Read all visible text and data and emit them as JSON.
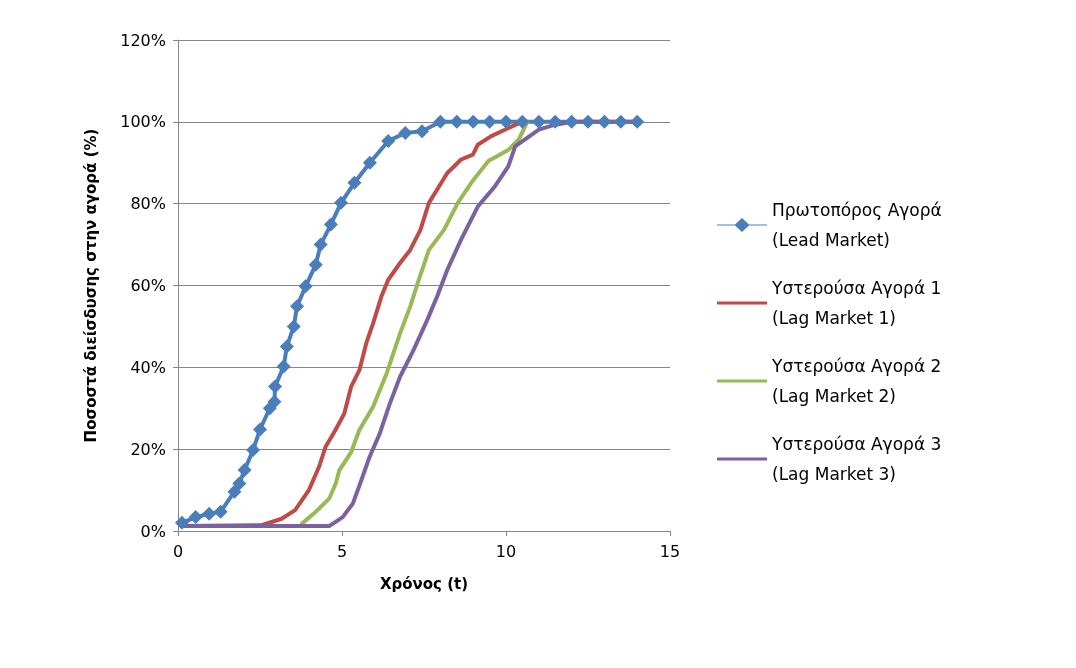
{
  "chart_data": {
    "type": "line",
    "xlabel": "Χρόνος (t)",
    "ylabel": "Ποσοστά διείσδυσης στην αγορά (%)",
    "xlim": [
      0,
      15
    ],
    "xticks": [
      0,
      5,
      10,
      15
    ],
    "ylim": [
      0,
      120
    ],
    "yticks": [
      {
        "value": 0,
        "label": "0%"
      },
      {
        "value": 20,
        "label": "20%"
      },
      {
        "value": 40,
        "label": "40%"
      },
      {
        "value": 60,
        "label": "60%"
      },
      {
        "value": 80,
        "label": "80%"
      },
      {
        "value": 100,
        "label": "100%"
      },
      {
        "value": 120,
        "label": "120%"
      }
    ],
    "grid": "y",
    "legend": "right",
    "marker": "none",
    "line_style": "solid",
    "series": [
      {
        "name": "Πρωτοπόρος Αγορά (Lead Market)",
        "color": "#4a7ebb",
        "marker": "diamond",
        "x": [
          0.12,
          0.54,
          0.95,
          1.3,
          1.72,
          1.87,
          2.03,
          2.29,
          2.5,
          2.8,
          2.94,
          2.96,
          3.22,
          3.32,
          3.53,
          3.63,
          3.89,
          4.2,
          4.35,
          4.66,
          4.97,
          5.38,
          5.85,
          6.41,
          6.93,
          7.44,
          8,
          8.5,
          9,
          9.5,
          10,
          10.5,
          11,
          11.5,
          12,
          12.5,
          13,
          13.5,
          14
        ],
        "values": [
          2,
          3.4,
          4.2,
          4.7,
          9.6,
          11.6,
          14.9,
          19.8,
          24.8,
          30,
          31.6,
          35.3,
          40.2,
          45.1,
          50,
          54.9,
          59.8,
          65.1,
          70,
          74.9,
          80.2,
          85.1,
          90,
          95.3,
          97.3,
          97.7,
          100,
          100,
          100,
          100,
          100,
          100,
          100,
          100,
          100,
          100,
          100,
          100,
          100
        ]
      },
      {
        "name": "Υστερούσα Αγορά 1 (Lag Market 1)",
        "color": "#be4b48",
        "x": [
          0.1,
          2.55,
          3.16,
          3.57,
          3.99,
          4.3,
          4.5,
          4.8,
          5.07,
          5.28,
          5.53,
          5.74,
          5.95,
          6.2,
          6.41,
          6.77,
          7.08,
          7.39,
          7.65,
          8.21,
          8.63,
          8.99,
          9.14,
          9.55,
          10.48
        ],
        "values": [
          1.2,
          1.4,
          3,
          5.1,
          10,
          15.7,
          20.6,
          24.7,
          28.7,
          35.3,
          39.3,
          45.9,
          50.8,
          57.3,
          61.4,
          65.5,
          68.7,
          73.6,
          80.2,
          87.5,
          90.8,
          92,
          94.4,
          96.5,
          100
        ]
      },
      {
        "name": "Υστερούσα Αγορά 2 (Lag Market 2)",
        "color": "#98b954",
        "x": [
          3.78,
          4.2,
          4.61,
          4.81,
          4.92,
          5.28,
          5.53,
          5.95,
          6.36,
          6.77,
          7.08,
          7.34,
          7.65,
          8.11,
          8.53,
          8.94,
          9.46,
          10.08,
          10.39,
          10.65
        ],
        "values": [
          1.8,
          4.7,
          7.9,
          11.6,
          14.9,
          19.3,
          24.7,
          30.4,
          38.5,
          48.3,
          54.9,
          61.4,
          68.7,
          73.6,
          80.2,
          85.1,
          90.4,
          93.2,
          95.7,
          100
        ]
      },
      {
        "name": "Υστερούσα Αγορά 3 (Lag Market 3)",
        "color": "#7d60a0",
        "x": [
          0.1,
          4.61,
          5.02,
          5.33,
          5.59,
          5.84,
          6.15,
          6.46,
          6.77,
          7.18,
          7.6,
          7.9,
          8.21,
          8.63,
          9.14,
          9.66,
          10.07,
          10.28,
          11,
          11.5,
          12.03,
          14
        ],
        "values": [
          1.2,
          1.2,
          3.4,
          6.7,
          12.4,
          18.1,
          23.8,
          31.2,
          37.7,
          44.2,
          51.6,
          57.3,
          63.8,
          71.2,
          79.3,
          84.2,
          89.1,
          94,
          98.1,
          99.3,
          100,
          100
        ]
      }
    ]
  }
}
